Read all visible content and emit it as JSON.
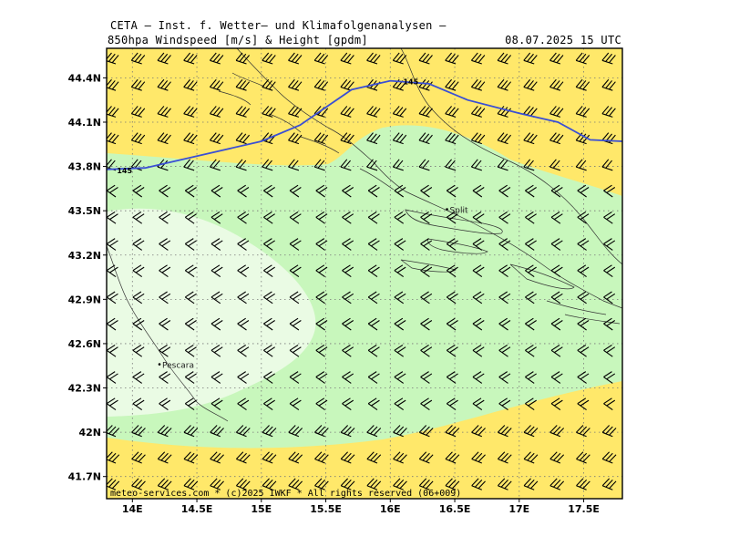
{
  "header": {
    "line1": "CETA – Inst. f. Wetter– und Klimafolgenanalysen –",
    "line2": "850hpa Windspeed [m/s] & Height [gpdm]",
    "datetime": "08.07.2025 15 UTC"
  },
  "map": {
    "lat_range": [
      41.55,
      44.6
    ],
    "lon_range": [
      13.8,
      17.8
    ],
    "y_ticks": [
      {
        "lat": 44.4,
        "label": "44.4N"
      },
      {
        "lat": 44.1,
        "label": "44.1N"
      },
      {
        "lat": 43.8,
        "label": "43.8N"
      },
      {
        "lat": 43.5,
        "label": "43.5N"
      },
      {
        "lat": 43.2,
        "label": "43.2N"
      },
      {
        "lat": 42.9,
        "label": "42.9N"
      },
      {
        "lat": 42.6,
        "label": "42.6N"
      },
      {
        "lat": 42.3,
        "label": "42.3N"
      },
      {
        "lat": 42.0,
        "label": "42N"
      },
      {
        "lat": 41.7,
        "label": "41.7N"
      }
    ],
    "x_ticks": [
      {
        "lon": 14.0,
        "label": "14E"
      },
      {
        "lon": 14.5,
        "label": "14.5E"
      },
      {
        "lon": 15.0,
        "label": "15E"
      },
      {
        "lon": 15.5,
        "label": "15.5E"
      },
      {
        "lon": 16.0,
        "label": "16E"
      },
      {
        "lon": 16.5,
        "label": "16.5E"
      },
      {
        "lon": 17.0,
        "label": "17E"
      },
      {
        "lon": 17.5,
        "label": "17.5E"
      }
    ],
    "colors": {
      "strong_wind": "#ffe86a",
      "medium_wind": "#c8f7bc",
      "light_wind": "#eafbe4",
      "isoline": "#3a4fd4",
      "coast": "#333333",
      "grid": "#777777"
    },
    "cities": [
      {
        "name": "Split",
        "lon": 16.44,
        "lat": 43.51
      },
      {
        "name": "Pescara",
        "lon": 14.21,
        "lat": 42.46
      }
    ],
    "height_contour": {
      "value_label": "145",
      "label_points": [
        {
          "lon": 13.88,
          "lat": 43.78
        },
        {
          "lon": 16.1,
          "lat": 44.38
        }
      ],
      "points": [
        [
          13.8,
          43.78
        ],
        [
          14.1,
          43.79
        ],
        [
          14.5,
          43.87
        ],
        [
          15.0,
          43.97
        ],
        [
          15.3,
          44.08
        ],
        [
          15.5,
          44.2
        ],
        [
          15.7,
          44.32
        ],
        [
          16.0,
          44.38
        ],
        [
          16.3,
          44.36
        ],
        [
          16.6,
          44.25
        ],
        [
          17.0,
          44.16
        ],
        [
          17.3,
          44.1
        ],
        [
          17.55,
          43.98
        ],
        [
          17.8,
          43.97
        ]
      ]
    },
    "credit": "meteo-services.com * (c)2025 IWKF * All rights reserved (06+009)"
  }
}
